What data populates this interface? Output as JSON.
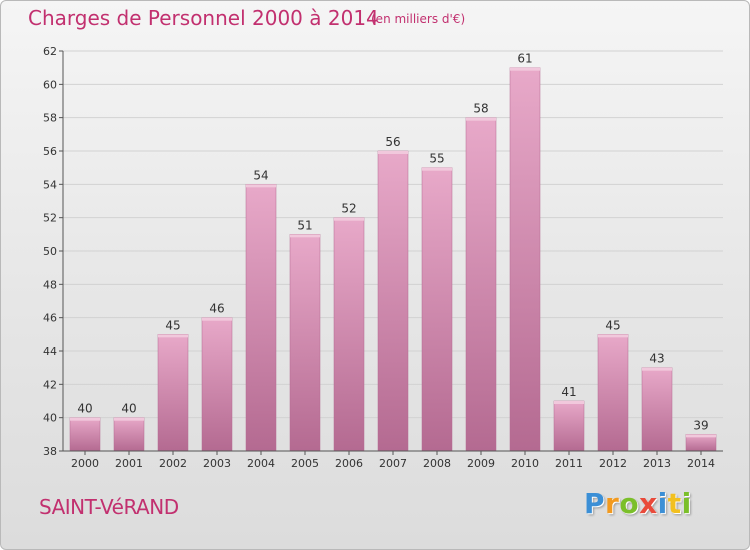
{
  "chart_data": {
    "type": "bar",
    "title": "Charges de Personnel 2000 à 2014",
    "subtitle": "(en milliers d'€)",
    "categories": [
      "2000",
      "2001",
      "2002",
      "2003",
      "2004",
      "2005",
      "2006",
      "2007",
      "2008",
      "2009",
      "2010",
      "2011",
      "2012",
      "2013",
      "2014"
    ],
    "values": [
      40,
      40,
      45,
      46,
      54,
      51,
      52,
      56,
      55,
      58,
      61,
      41,
      45,
      43,
      39
    ],
    "value_labels": [
      "40",
      "40",
      "45",
      "46",
      "54",
      "51",
      "52",
      "56",
      "55",
      "58",
      "61",
      "41",
      "45",
      "43",
      "39"
    ],
    "ylim": [
      38,
      62
    ],
    "yticks": [
      38,
      40,
      42,
      44,
      46,
      48,
      50,
      52,
      54,
      56,
      58,
      60,
      62
    ],
    "ytick_labels": [
      "38",
      "40",
      "42",
      "44",
      "46",
      "48",
      "50",
      "52",
      "54",
      "56",
      "58",
      "60",
      "62"
    ],
    "grid": true,
    "xlabel": "",
    "ylabel": ""
  },
  "place_name": "SAINT-VéRAND",
  "logo": {
    "letters": [
      "P",
      "r",
      "o",
      "x",
      "i",
      "t",
      "i"
    ],
    "text": "Proxiti"
  },
  "colors": {
    "title": "#c2306f",
    "bar_light": "#e8a9c9",
    "bar_dark": "#b46a91",
    "grid": "#d2d2d2",
    "axis": "#555555",
    "logo_letters": [
      "#3b8fd6",
      "#f29a1f",
      "#7bbf2a",
      "#e94a3a",
      "#3b8fd6",
      "#f2c01f",
      "#7bbf2a"
    ]
  }
}
